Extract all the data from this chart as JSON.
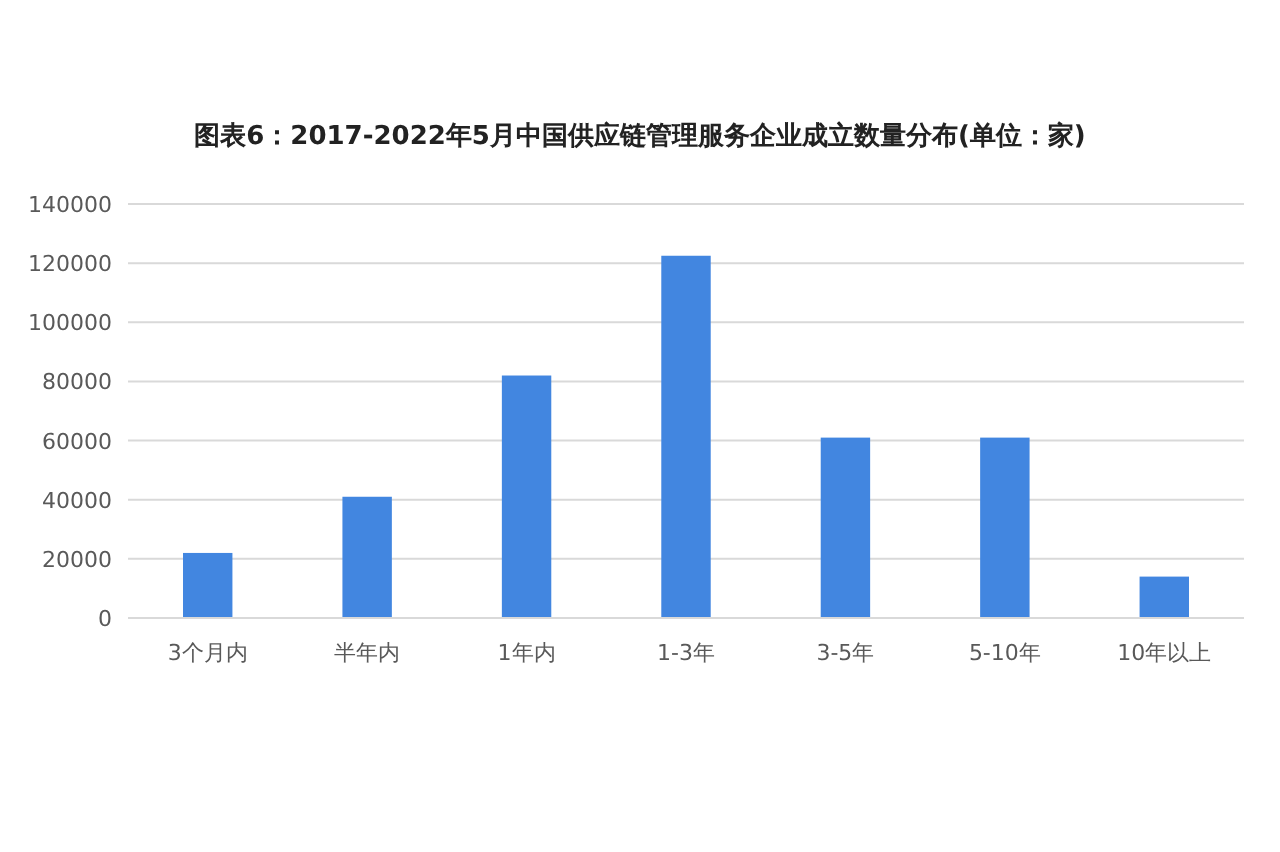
{
  "chart_data": {
    "type": "bar",
    "title": "图表6：2017-2022年5月中国供应链管理服务企业成立数量分布(单位：家)",
    "categories": [
      "3个月内",
      "半年内",
      "1年内",
      "1-3年",
      "3-5年",
      "5-10年",
      "10年以上"
    ],
    "values": [
      22000,
      41000,
      82000,
      122500,
      61000,
      61000,
      14000
    ],
    "color": "#4286e0",
    "ylim": [
      0,
      140000
    ],
    "yticks": [
      0,
      20000,
      40000,
      60000,
      80000,
      100000,
      120000,
      140000
    ],
    "grid": "y"
  }
}
